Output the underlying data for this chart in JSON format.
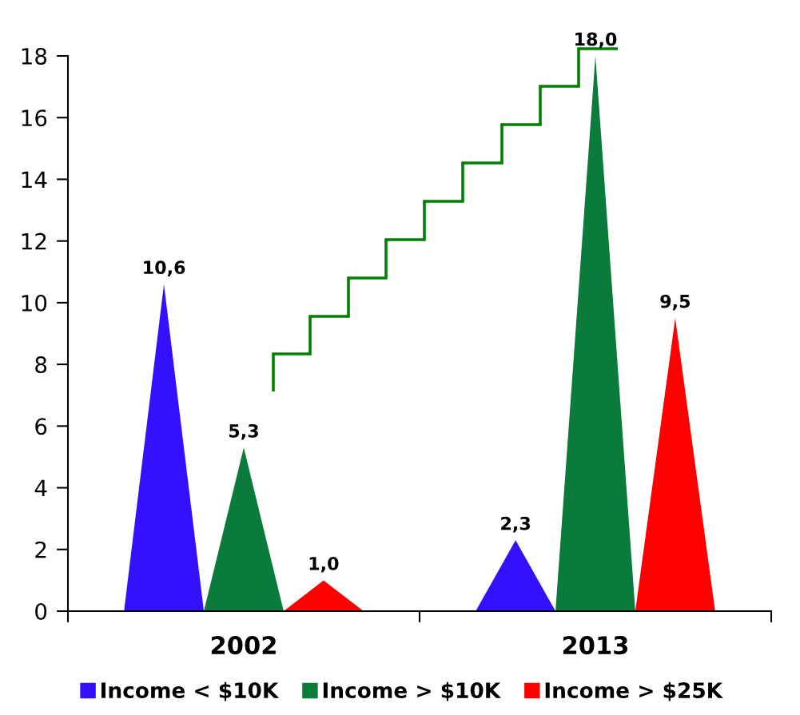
{
  "chart_data": {
    "type": "bar",
    "categories": [
      "2002",
      "2013"
    ],
    "series": [
      {
        "name": "Income < $10K",
        "color": "#3311ff",
        "values": [
          10.6,
          2.3
        ],
        "value_labels": [
          "10,6",
          "2,3"
        ]
      },
      {
        "name": "Income > $10K",
        "color": "#0b7b3b",
        "values": [
          5.3,
          18.0
        ],
        "value_labels": [
          "5,3",
          "18,0"
        ]
      },
      {
        "name": "Income > $25K",
        "color": "#ff0000",
        "values": [
          1.0,
          9.5
        ],
        "value_labels": [
          "1,0",
          "9,5"
        ]
      }
    ],
    "ylim": [
      0,
      18
    ],
    "yticks": [
      0,
      2,
      4,
      6,
      8,
      10,
      12,
      14,
      16,
      18
    ],
    "legend": "bottom"
  }
}
